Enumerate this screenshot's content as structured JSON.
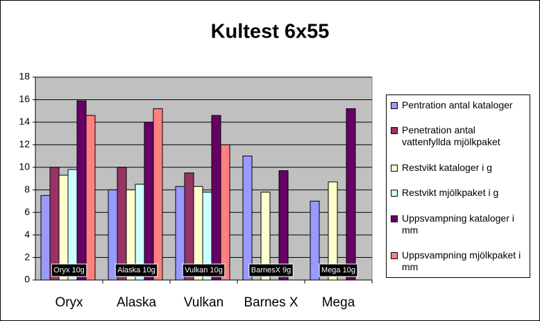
{
  "chart_data": {
    "type": "bar",
    "title": "Kultest 6x55",
    "categories": [
      "Oryx",
      "Alaska",
      "Vulkan",
      "Barnes X",
      "Mega"
    ],
    "series": [
      {
        "name": "Pentration antal kataloger",
        "color": "#9999ff",
        "values": [
          7.5,
          8,
          8.3,
          11,
          7
        ]
      },
      {
        "name": "Penetration antal vattenfyllda mjölkpaket",
        "color": "#993366",
        "values": [
          10,
          10,
          9.5,
          null,
          null
        ]
      },
      {
        "name": "Restvikt kataloger i g",
        "color": "#ffffcc",
        "values": [
          9.3,
          8,
          8.3,
          7.8,
          8.7
        ]
      },
      {
        "name": "Restvikt mjölkpaket i g",
        "color": "#ccffff",
        "values": [
          9.8,
          8.5,
          7.8,
          null,
          null
        ]
      },
      {
        "name": "Uppsvampning kataloger i mm",
        "color": "#660066",
        "values": [
          15.9,
          14,
          14.6,
          9.7,
          15.2
        ]
      },
      {
        "name": "Uppsvampning mjölkpaket i mm",
        "color": "#ff8080",
        "values": [
          14.6,
          15.2,
          12,
          null,
          null
        ]
      }
    ],
    "annotations": [
      "Oryx 10g",
      "Alaska 10g",
      "Vulkan 10g",
      "BarnesX 9g",
      "Mega 10g"
    ],
    "ylim": [
      0,
      18
    ],
    "yticks": [
      0,
      2,
      4,
      6,
      8,
      10,
      12,
      14,
      16,
      18
    ],
    "grid": true,
    "legend": "right"
  }
}
